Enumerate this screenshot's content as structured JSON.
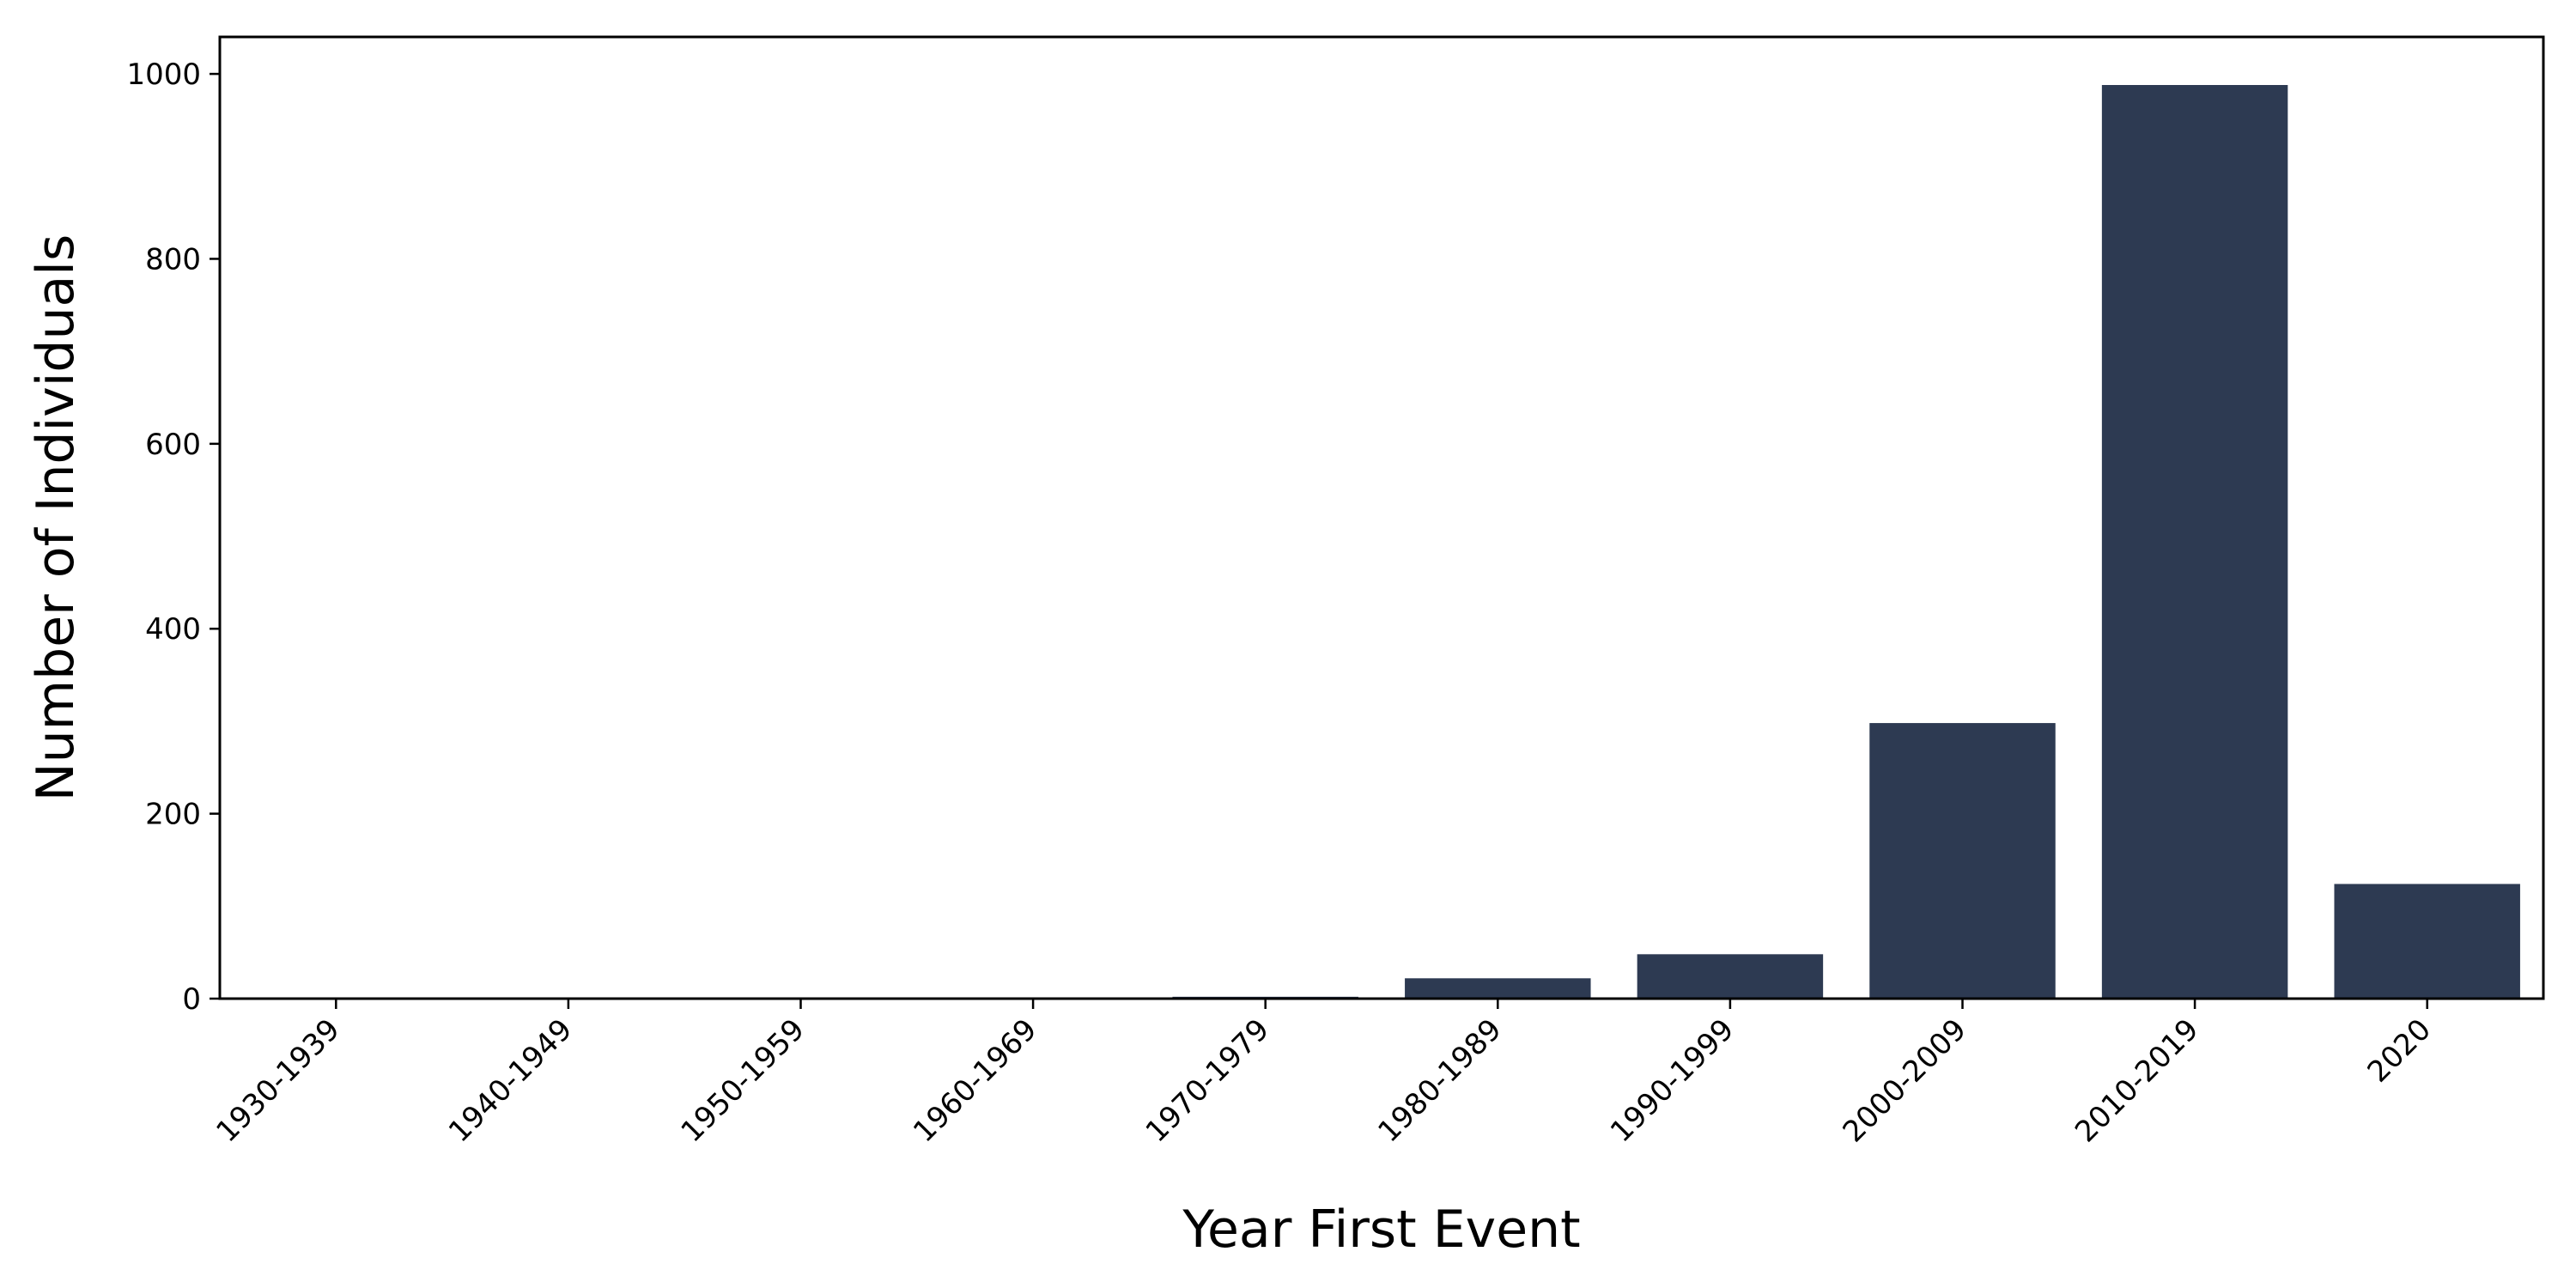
{
  "chart_data": {
    "type": "bar",
    "title": "",
    "xlabel": "Year First Event",
    "ylabel": "Number of Individuals",
    "categories": [
      "1930-1939",
      "1940-1949",
      "1950-1959",
      "1960-1969",
      "1970-1979",
      "1980-1989",
      "1990-1999",
      "2000-2009",
      "2010-2019",
      "2020"
    ],
    "values": [
      0,
      0,
      0,
      1,
      2,
      22,
      48,
      298,
      988,
      124
    ],
    "ylim": [
      0,
      1040
    ],
    "yticks": [
      0,
      200,
      400,
      600,
      800,
      1000
    ],
    "grid": false,
    "legend": "none",
    "bar_color": "#2d3a52"
  }
}
